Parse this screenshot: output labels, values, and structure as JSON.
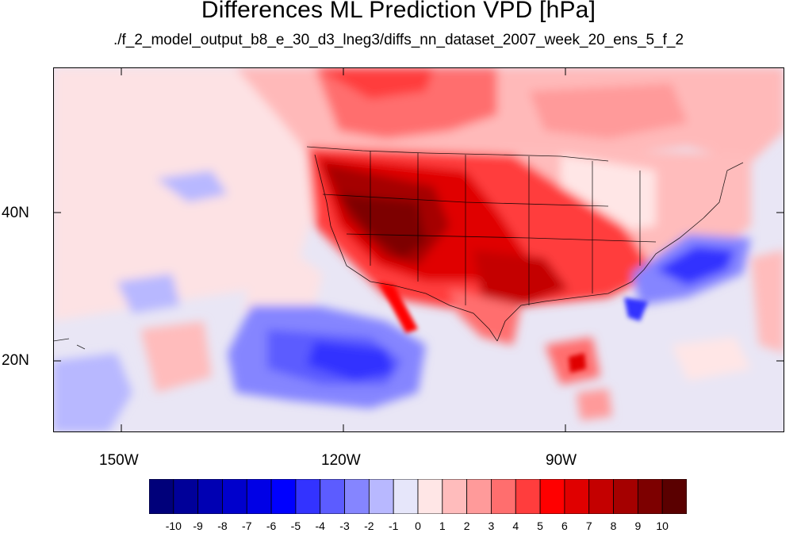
{
  "title": "Differences ML Prediction VPD [hPa]",
  "subtitle": "./f_2_model_output_b8_e_30_d3_lneg3/diffs_nn_dataset_2007_week_20_ens_5_f_2",
  "lat_labels": [
    "20N",
    "40N"
  ],
  "lon_labels": [
    "150W",
    "120W",
    "90W"
  ],
  "colorbar": {
    "labels": [
      "-10",
      "-9",
      "-8",
      "-7",
      "-6",
      "-5",
      "-4",
      "-3",
      "-2",
      "-1",
      "0",
      "1",
      "2",
      "3",
      "4",
      "5",
      "6",
      "7",
      "8",
      "9",
      "10"
    ],
    "colors": [
      "#00007a",
      "#000099",
      "#0000b3",
      "#0000cc",
      "#0000e6",
      "#0000ff",
      "#3333ff",
      "#5c5cff",
      "#8585ff",
      "#b8b8ff",
      "#e6e6fa",
      "#ffe6e6",
      "#ffbcbc",
      "#ff9a9a",
      "#ff6e6e",
      "#ff3d3d",
      "#ff0000",
      "#e00000",
      "#c40000",
      "#a50000",
      "#7d0000",
      "#5a0000"
    ]
  }
}
